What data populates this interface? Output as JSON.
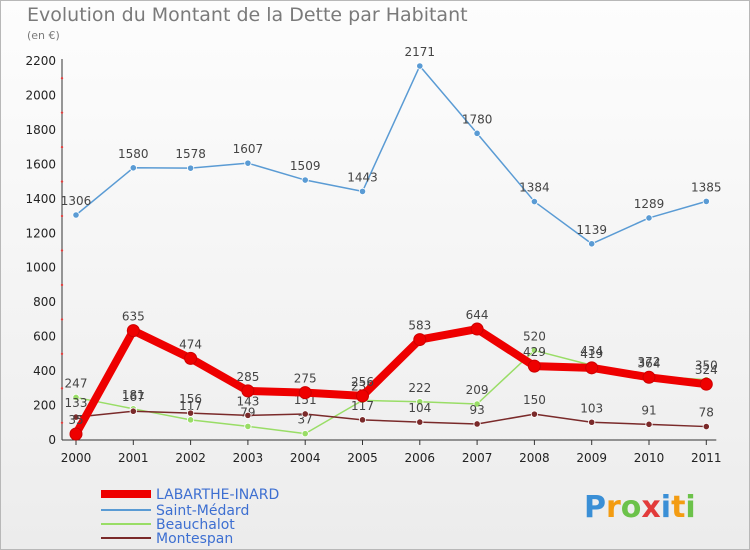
{
  "chart_data": {
    "type": "line",
    "title": "Evolution du Montant de la Dette par Habitant",
    "subtitle": "(en €)",
    "categories": [
      "2000",
      "2001",
      "2002",
      "2003",
      "2004",
      "2005",
      "2006",
      "2007",
      "2008",
      "2009",
      "2010",
      "2011"
    ],
    "ylim": [
      0,
      2200
    ],
    "yticks": [
      0,
      200,
      400,
      600,
      800,
      1000,
      1200,
      1400,
      1600,
      1800,
      2000,
      2200
    ],
    "grid": false,
    "legend_position": "bottom-left",
    "series": [
      {
        "name": "LABARTHE-INARD",
        "color": "#ee0000",
        "values": [
          35,
          635,
          474,
          285,
          275,
          256,
          583,
          644,
          429,
          419,
          364,
          324
        ]
      },
      {
        "name": "Saint-Médard",
        "color": "#5a9bd4",
        "values": [
          1306,
          1580,
          1578,
          1607,
          1509,
          1443,
          2171,
          1780,
          1384,
          1139,
          1289,
          1385
        ]
      },
      {
        "name": "Beauchalot",
        "color": "#99dd66",
        "values": [
          247,
          181,
          117,
          79,
          37,
          230,
          222,
          209,
          520,
          434,
          372,
          350
        ]
      },
      {
        "name": "Montespan",
        "color": "#7a2a2a",
        "values": [
          133,
          167,
          156,
          143,
          151,
          117,
          104,
          93,
          150,
          103,
          91,
          78
        ]
      }
    ]
  },
  "brand": {
    "letters": [
      "P",
      "r",
      "o",
      "x",
      "i",
      "t",
      "i"
    ],
    "colors": [
      "#3a8fd6",
      "#f39c12",
      "#6cc24a",
      "#e23b3b",
      "#3a8fd6",
      "#f39c12",
      "#6cc24a"
    ]
  }
}
